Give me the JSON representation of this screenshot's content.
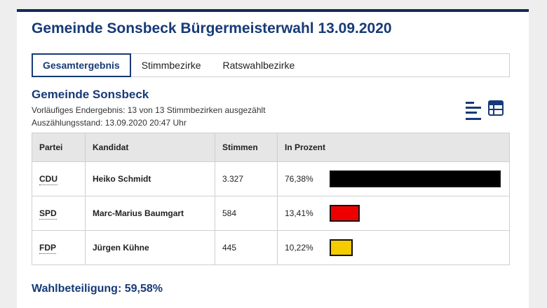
{
  "page": {
    "title": "Gemeinde Sonsbeck Bürgermeisterwahl 13.09.2020"
  },
  "tabs": [
    {
      "label": "Gesamtergebnis",
      "active": true
    },
    {
      "label": "Stimmbezirke",
      "active": false
    },
    {
      "label": "Ratswahlbezirke",
      "active": false
    }
  ],
  "section": {
    "title": "Gemeinde Sonsbeck",
    "status": "Vorläufiges Endergebnis: 13 von 13 Stimmbezirken ausgezählt",
    "count_time": "Auszählungsstand: 13.09.2020 20:47 Uhr"
  },
  "view_toggle": {
    "icons": [
      "list-view-icon",
      "table-view-icon"
    ],
    "active": "list-view-icon"
  },
  "table": {
    "headers": [
      "Partei",
      "Kandidat",
      "Stimmen",
      "In Prozent"
    ],
    "rows": [
      {
        "party": "CDU",
        "candidate": "Heiko Schmidt",
        "votes": "3.327",
        "percent_label": "76,38%",
        "percent": 76.38,
        "color": "#000000"
      },
      {
        "party": "SPD",
        "candidate": "Marc-Marius Baumgart",
        "votes": "584",
        "percent_label": "13,41%",
        "percent": 13.41,
        "color": "#ee0000"
      },
      {
        "party": "FDP",
        "candidate": "Jürgen Kühne",
        "votes": "445",
        "percent_label": "10,22%",
        "percent": 10.22,
        "color": "#f5cc00"
      }
    ]
  },
  "turnout": "Wahlbeteiligung: 59,58%",
  "colors": {
    "accent": "#173a78",
    "top_border": "#142a5c"
  }
}
